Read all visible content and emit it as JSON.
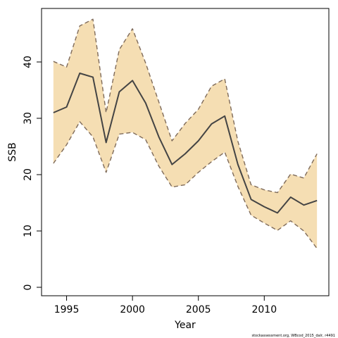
{
  "chart_data": {
    "type": "line",
    "xlabel": "Year",
    "ylabel": "SSB",
    "xlim": [
      1993.1,
      2014.9
    ],
    "ylim": [
      -1.5,
      49.5
    ],
    "x_ticks": [
      1995,
      2000,
      2005,
      2010
    ],
    "y_ticks": [
      0,
      10,
      20,
      30,
      40
    ],
    "grid": false,
    "band_color": "#f5deb3",
    "line_color": "#444444",
    "bound_color": "#7f6b5a",
    "caption": "stockassessment.org, WBcod_2015_dalr, r4491",
    "x": [
      1994,
      1995,
      1996,
      1997,
      1998,
      1999,
      2000,
      2001,
      2002,
      2003,
      2004,
      2005,
      2006,
      2007,
      2008,
      2009,
      2010,
      2011,
      2012,
      2013,
      2014
    ],
    "series": [
      {
        "values": [
          31,
          32,
          38,
          37.3,
          25.7,
          34.7,
          36.7,
          32.7,
          26.7,
          21.8,
          23.7,
          26,
          29,
          30.4,
          21.8,
          15.6,
          14.3,
          13.2,
          16,
          14.6,
          15.4
        ]
      },
      {
        "values": [
          40.1,
          39.1,
          46.4,
          47.6,
          31,
          42.2,
          45.9,
          39.8,
          32.9,
          26,
          29.1,
          31.6,
          35.7,
          37,
          25.9,
          18.2,
          17.3,
          16.8,
          20.1,
          19.4,
          23.7
        ]
      },
      {
        "values": [
          22,
          25.3,
          29.4,
          26.7,
          20.4,
          27.2,
          27.5,
          26.2,
          21.5,
          17.8,
          18.2,
          20.4,
          22.3,
          24,
          17.9,
          12.8,
          11.4,
          10.1,
          11.8,
          10,
          6.9
        ]
      }
    ]
  }
}
